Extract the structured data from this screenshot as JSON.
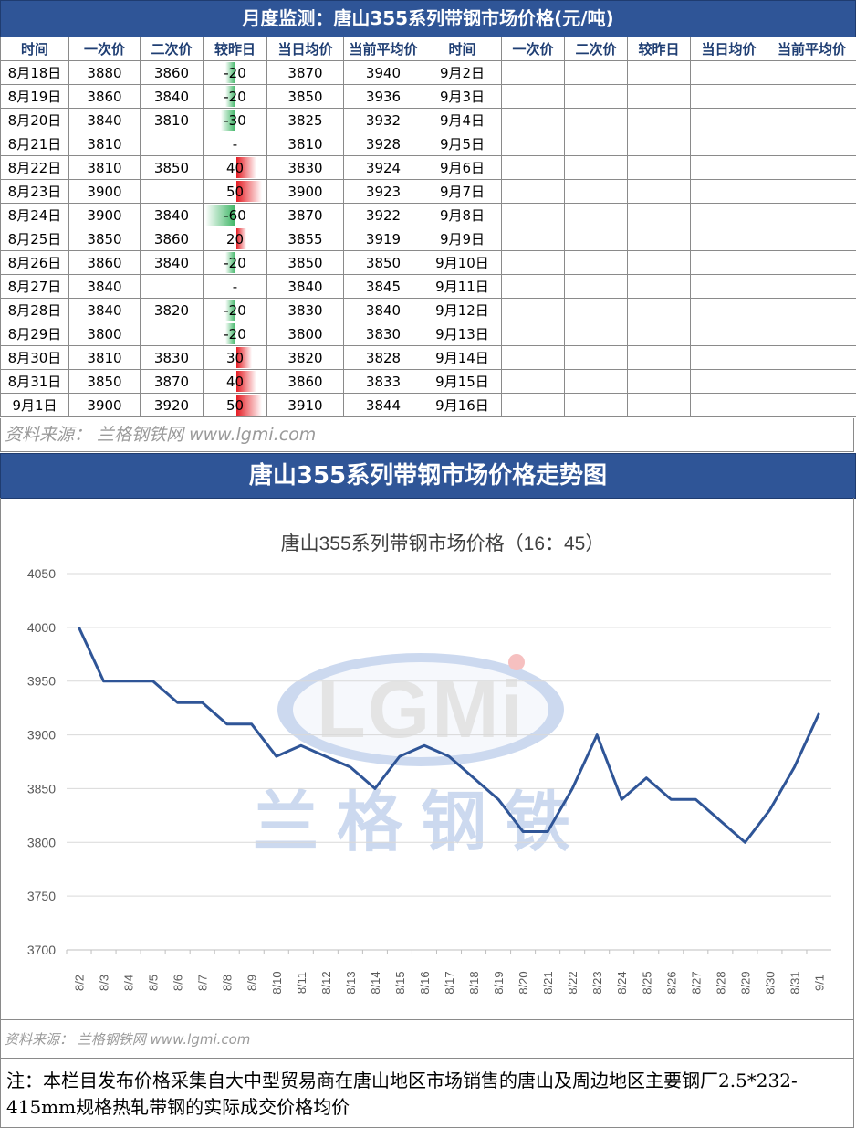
{
  "header": {
    "title": "月度监测：唐山355系列带钢市场价格(元/吨)"
  },
  "table": {
    "headers": [
      "时间",
      "一次价",
      "二次价",
      "较昨日",
      "当日均价",
      "当前平均价",
      "时间",
      "一次价",
      "二次价",
      "较昨日",
      "当日均价",
      "当前平均价"
    ],
    "rows": [
      {
        "date": "8月18日",
        "p1": "3880",
        "p2": "3860",
        "chg": "-20",
        "chg_num": -20,
        "avg": "3870",
        "cur": "3940",
        "date2": "9月2日"
      },
      {
        "date": "8月19日",
        "p1": "3860",
        "p2": "3840",
        "chg": "-20",
        "chg_num": -20,
        "avg": "3850",
        "cur": "3936",
        "date2": "9月3日"
      },
      {
        "date": "8月20日",
        "p1": "3840",
        "p2": "3810",
        "chg": "-30",
        "chg_num": -30,
        "avg": "3825",
        "cur": "3932",
        "date2": "9月4日"
      },
      {
        "date": "8月21日",
        "p1": "3810",
        "p2": "",
        "chg": "-",
        "chg_num": 0,
        "avg": "3810",
        "cur": "3928",
        "date2": "9月5日"
      },
      {
        "date": "8月22日",
        "p1": "3810",
        "p2": "3850",
        "chg": "40",
        "chg_num": 40,
        "avg": "3830",
        "cur": "3924",
        "date2": "9月6日"
      },
      {
        "date": "8月23日",
        "p1": "3900",
        "p2": "",
        "chg": "50",
        "chg_num": 50,
        "avg": "3900",
        "cur": "3923",
        "date2": "9月7日"
      },
      {
        "date": "8月24日",
        "p1": "3900",
        "p2": "3840",
        "chg": "-60",
        "chg_num": -60,
        "avg": "3870",
        "cur": "3922",
        "date2": "9月8日"
      },
      {
        "date": "8月25日",
        "p1": "3850",
        "p2": "3860",
        "chg": "20",
        "chg_num": 20,
        "avg": "3855",
        "cur": "3919",
        "date2": "9月9日"
      },
      {
        "date": "8月26日",
        "p1": "3860",
        "p2": "3840",
        "chg": "-20",
        "chg_num": -20,
        "avg": "3850",
        "cur": "3850",
        "date2": "9月10日"
      },
      {
        "date": "8月27日",
        "p1": "3840",
        "p2": "",
        "chg": "-",
        "chg_num": 0,
        "avg": "3840",
        "cur": "3845",
        "date2": "9月11日"
      },
      {
        "date": "8月28日",
        "p1": "3840",
        "p2": "3820",
        "chg": "-20",
        "chg_num": -20,
        "avg": "3830",
        "cur": "3840",
        "date2": "9月12日"
      },
      {
        "date": "8月29日",
        "p1": "3800",
        "p2": "",
        "chg": "-20",
        "chg_num": -20,
        "avg": "3800",
        "cur": "3830",
        "date2": "9月13日"
      },
      {
        "date": "8月30日",
        "p1": "3810",
        "p2": "3830",
        "chg": "30",
        "chg_num": 30,
        "avg": "3820",
        "cur": "3828",
        "date2": "9月14日"
      },
      {
        "date": "8月31日",
        "p1": "3850",
        "p2": "3870",
        "chg": "40",
        "chg_num": 40,
        "avg": "3860",
        "cur": "3833",
        "date2": "9月15日"
      },
      {
        "date": "9月1日",
        "p1": "3900",
        "p2": "3920",
        "chg": "50",
        "chg_num": 50,
        "avg": "3910",
        "cur": "3844",
        "date2": "9月16日"
      }
    ]
  },
  "source_line": "资料来源： 兰格钢铁网 www.lgmi.com",
  "chart_section": {
    "title": "唐山355系列带钢市场价格走势图"
  },
  "watermark": {
    "logo": "LGMi",
    "name": "兰格钢铁"
  },
  "colors": {
    "header_bg": "#2F5597",
    "header_text": "#1F3E73",
    "line": "#2F5597",
    "neg": "#3cb564",
    "pos": "#e51c23"
  },
  "chart_data": {
    "type": "line",
    "title": "唐山355系列带钢市场价格（16：45）",
    "categories": [
      "8/2",
      "8/3",
      "8/4",
      "8/5",
      "8/6",
      "8/7",
      "8/8",
      "8/9",
      "8/10",
      "8/11",
      "8/12",
      "8/13",
      "8/14",
      "8/15",
      "8/16",
      "8/17",
      "8/18",
      "8/19",
      "8/20",
      "8/21",
      "8/22",
      "8/23",
      "8/24",
      "8/25",
      "8/26",
      "8/27",
      "8/28",
      "8/29",
      "8/30",
      "8/31",
      "9/1"
    ],
    "series": [
      {
        "values": [
          4000,
          3950,
          3950,
          3950,
          3930,
          3930,
          3910,
          3910,
          3880,
          3890,
          3880,
          3870,
          3850,
          3880,
          3890,
          3880,
          3860,
          3840,
          3810,
          3810,
          3850,
          3900,
          3840,
          3860,
          3840,
          3840,
          3820,
          3800,
          3830,
          3870,
          3920
        ]
      }
    ],
    "ylim": [
      3700,
      4050
    ],
    "yticks": [
      3700,
      3750,
      3800,
      3850,
      3900,
      3950,
      4000,
      4050
    ],
    "grid": true
  },
  "source_line2": "资料来源： 兰格钢铁网 www.lgmi.com",
  "note": "注：本栏目发布价格采集自大中型贸易商在唐山地区市场销售的唐山及周边地区主要钢厂2.5*232-415mm规格热轧带钢的实际成交价格均价"
}
